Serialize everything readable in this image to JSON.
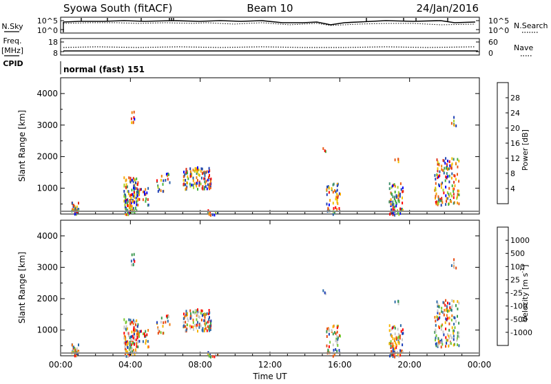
{
  "header": {
    "station": "Syowa South (fitACF)",
    "beam": "Beam 10",
    "date": "24/Jan/2016"
  },
  "noise_panel": {
    "left_label": "N.Sky",
    "right_label": "N.Search",
    "left_ticks": [
      "10^5",
      "10^0"
    ],
    "right_ticks": [
      "10^5",
      "10^0"
    ]
  },
  "freq_panel": {
    "left_label_1": "Freq.",
    "left_label_2": "[MHz]",
    "right_label": "Nave",
    "left_ticks": [
      "18",
      "8"
    ],
    "right_ticks": [
      "60",
      "0"
    ]
  },
  "cpid": {
    "label": "CPID",
    "value": "normal (fast) 151"
  },
  "colors": {
    "power": [
      "#0000ff",
      "#1f3fb4",
      "#2a5fa8",
      "#3d8f6a",
      "#44b33c",
      "#a9d12a",
      "#f2c300",
      "#f7a400",
      "#f07f0a",
      "#e85a14",
      "#e0301a",
      "#ff0000"
    ],
    "velocity": [
      "#ff0000",
      "#e84a10",
      "#f07a10",
      "#f6b400",
      "#c8c8c8",
      "#c8c8c8",
      "#78c832",
      "#3c9a50",
      "#2c6aa8",
      "#1a3cb8"
    ]
  },
  "chart_data": [
    {
      "type": "heatmap",
      "title": "Power",
      "ylabel": "Slant Range [km]",
      "xlabel": "",
      "xlim": [
        "00:00",
        "24:00"
      ],
      "ylim": [
        180,
        4500
      ],
      "y_ticks": [
        1000,
        2000,
        3000,
        4000
      ],
      "x_ticks": [
        "00:00",
        "04:00",
        "08:00",
        "12:00",
        "16:00",
        "20:00",
        "00:00"
      ],
      "colorbar": {
        "label": "Power [dB]",
        "range": [
          0,
          30
        ],
        "ticks": [
          "4",
          "8",
          "12",
          "16",
          "20",
          "24",
          "28"
        ]
      }
    },
    {
      "type": "heatmap",
      "title": "Velocity",
      "ylabel": "Slant Range [km]",
      "xlabel": "Time UT",
      "xlim": [
        "00:00",
        "24:00"
      ],
      "ylim": [
        180,
        4500
      ],
      "y_ticks": [
        1000,
        2000,
        3000,
        4000
      ],
      "x_ticks": [
        "00:00",
        "04:00",
        "08:00",
        "12:00",
        "16:00",
        "20:00",
        "00:00"
      ],
      "colorbar": {
        "label": "Velocity [m s^-1]",
        "ticks": [
          "1000",
          "500",
          "100",
          "25",
          "-25",
          "-100",
          "-500",
          "-1000"
        ]
      }
    }
  ]
}
